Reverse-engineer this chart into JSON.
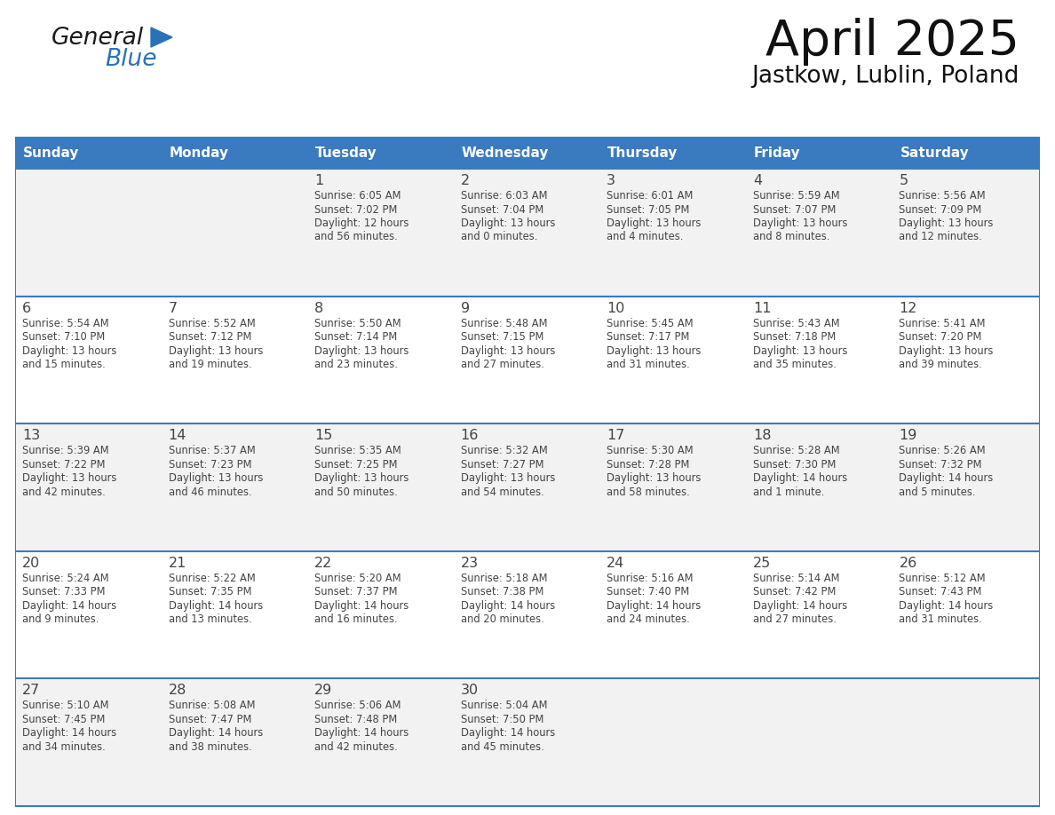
{
  "title": "April 2025",
  "subtitle": "Jastkow, Lublin, Poland",
  "header_color": "#3a7abf",
  "header_text_color": "#ffffff",
  "cell_bg_white": "#ffffff",
  "cell_bg_gray": "#f2f2f2",
  "border_color": "#3a7abf",
  "sep_line_color": "#3a7abf",
  "text_color": "#444444",
  "logo_black": "#1a1a1a",
  "logo_blue": "#2a72b8",
  "days_of_week": [
    "Sunday",
    "Monday",
    "Tuesday",
    "Wednesday",
    "Thursday",
    "Friday",
    "Saturday"
  ],
  "calendar_data": [
    [
      {
        "day": "",
        "info": ""
      },
      {
        "day": "",
        "info": ""
      },
      {
        "day": "1",
        "info": "Sunrise: 6:05 AM\nSunset: 7:02 PM\nDaylight: 12 hours\nand 56 minutes."
      },
      {
        "day": "2",
        "info": "Sunrise: 6:03 AM\nSunset: 7:04 PM\nDaylight: 13 hours\nand 0 minutes."
      },
      {
        "day": "3",
        "info": "Sunrise: 6:01 AM\nSunset: 7:05 PM\nDaylight: 13 hours\nand 4 minutes."
      },
      {
        "day": "4",
        "info": "Sunrise: 5:59 AM\nSunset: 7:07 PM\nDaylight: 13 hours\nand 8 minutes."
      },
      {
        "day": "5",
        "info": "Sunrise: 5:56 AM\nSunset: 7:09 PM\nDaylight: 13 hours\nand 12 minutes."
      }
    ],
    [
      {
        "day": "6",
        "info": "Sunrise: 5:54 AM\nSunset: 7:10 PM\nDaylight: 13 hours\nand 15 minutes."
      },
      {
        "day": "7",
        "info": "Sunrise: 5:52 AM\nSunset: 7:12 PM\nDaylight: 13 hours\nand 19 minutes."
      },
      {
        "day": "8",
        "info": "Sunrise: 5:50 AM\nSunset: 7:14 PM\nDaylight: 13 hours\nand 23 minutes."
      },
      {
        "day": "9",
        "info": "Sunrise: 5:48 AM\nSunset: 7:15 PM\nDaylight: 13 hours\nand 27 minutes."
      },
      {
        "day": "10",
        "info": "Sunrise: 5:45 AM\nSunset: 7:17 PM\nDaylight: 13 hours\nand 31 minutes."
      },
      {
        "day": "11",
        "info": "Sunrise: 5:43 AM\nSunset: 7:18 PM\nDaylight: 13 hours\nand 35 minutes."
      },
      {
        "day": "12",
        "info": "Sunrise: 5:41 AM\nSunset: 7:20 PM\nDaylight: 13 hours\nand 39 minutes."
      }
    ],
    [
      {
        "day": "13",
        "info": "Sunrise: 5:39 AM\nSunset: 7:22 PM\nDaylight: 13 hours\nand 42 minutes."
      },
      {
        "day": "14",
        "info": "Sunrise: 5:37 AM\nSunset: 7:23 PM\nDaylight: 13 hours\nand 46 minutes."
      },
      {
        "day": "15",
        "info": "Sunrise: 5:35 AM\nSunset: 7:25 PM\nDaylight: 13 hours\nand 50 minutes."
      },
      {
        "day": "16",
        "info": "Sunrise: 5:32 AM\nSunset: 7:27 PM\nDaylight: 13 hours\nand 54 minutes."
      },
      {
        "day": "17",
        "info": "Sunrise: 5:30 AM\nSunset: 7:28 PM\nDaylight: 13 hours\nand 58 minutes."
      },
      {
        "day": "18",
        "info": "Sunrise: 5:28 AM\nSunset: 7:30 PM\nDaylight: 14 hours\nand 1 minute."
      },
      {
        "day": "19",
        "info": "Sunrise: 5:26 AM\nSunset: 7:32 PM\nDaylight: 14 hours\nand 5 minutes."
      }
    ],
    [
      {
        "day": "20",
        "info": "Sunrise: 5:24 AM\nSunset: 7:33 PM\nDaylight: 14 hours\nand 9 minutes."
      },
      {
        "day": "21",
        "info": "Sunrise: 5:22 AM\nSunset: 7:35 PM\nDaylight: 14 hours\nand 13 minutes."
      },
      {
        "day": "22",
        "info": "Sunrise: 5:20 AM\nSunset: 7:37 PM\nDaylight: 14 hours\nand 16 minutes."
      },
      {
        "day": "23",
        "info": "Sunrise: 5:18 AM\nSunset: 7:38 PM\nDaylight: 14 hours\nand 20 minutes."
      },
      {
        "day": "24",
        "info": "Sunrise: 5:16 AM\nSunset: 7:40 PM\nDaylight: 14 hours\nand 24 minutes."
      },
      {
        "day": "25",
        "info": "Sunrise: 5:14 AM\nSunset: 7:42 PM\nDaylight: 14 hours\nand 27 minutes."
      },
      {
        "day": "26",
        "info": "Sunrise: 5:12 AM\nSunset: 7:43 PM\nDaylight: 14 hours\nand 31 minutes."
      }
    ],
    [
      {
        "day": "27",
        "info": "Sunrise: 5:10 AM\nSunset: 7:45 PM\nDaylight: 14 hours\nand 34 minutes."
      },
      {
        "day": "28",
        "info": "Sunrise: 5:08 AM\nSunset: 7:47 PM\nDaylight: 14 hours\nand 38 minutes."
      },
      {
        "day": "29",
        "info": "Sunrise: 5:06 AM\nSunset: 7:48 PM\nDaylight: 14 hours\nand 42 minutes."
      },
      {
        "day": "30",
        "info": "Sunrise: 5:04 AM\nSunset: 7:50 PM\nDaylight: 14 hours\nand 45 minutes."
      },
      {
        "day": "",
        "info": ""
      },
      {
        "day": "",
        "info": ""
      },
      {
        "day": "",
        "info": ""
      }
    ]
  ]
}
